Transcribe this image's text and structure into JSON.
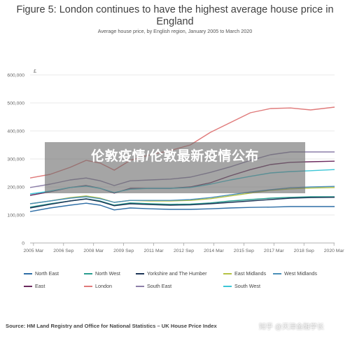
{
  "header": {
    "title": "Figure 5: London continues to have the highest average house price in England",
    "subtitle": "Average house price, by English region, January 2005 to March 2020"
  },
  "overlay_text": "伦敦疫情/伦敦最新疫情公布",
  "source_text": "Source: HM Land Registry and Office for National Statistics – UK House Price Index",
  "watermark_text": "知乎 @天津金融学长",
  "chart_data": {
    "type": "line",
    "ylabel": "£",
    "ylim": [
      0,
      600000
    ],
    "yticks": [
      "0",
      "100,000",
      "200,000",
      "300,000",
      "400,000",
      "500,000",
      "600,000"
    ],
    "xlim": [
      2005,
      2020.2
    ],
    "xticks": [
      {
        "label": "2005 Mar",
        "value": 2005.17
      },
      {
        "label": "2006 Sep",
        "value": 2006.67
      },
      {
        "label": "2008 Mar",
        "value": 2008.17
      },
      {
        "label": "2009 Sep",
        "value": 2009.67
      },
      {
        "label": "2011 Mar",
        "value": 2011.17
      },
      {
        "label": "2012 Sep",
        "value": 2012.67
      },
      {
        "label": "2014 Mar",
        "value": 2014.17
      },
      {
        "label": "2015 Sep",
        "value": 2015.67
      },
      {
        "label": "2017 Mar",
        "value": 2017.17
      },
      {
        "label": "2018 Sep",
        "value": 2018.67
      },
      {
        "label": "2020 Mar",
        "value": 2020.17
      }
    ],
    "grid": true,
    "legend_position": "bottom",
    "x": [
      2005.0,
      2006.0,
      2007.0,
      2007.8,
      2008.5,
      2009.2,
      2010.0,
      2011.0,
      2012.0,
      2013.0,
      2014.0,
      2015.0,
      2016.0,
      2017.0,
      2018.0,
      2019.0,
      2020.2
    ],
    "series": [
      {
        "name": "North East",
        "color": "#2e6ea6",
        "values": [
          112000,
          125000,
          135000,
          142000,
          135000,
          118000,
          125000,
          122000,
          120000,
          120000,
          122000,
          125000,
          127000,
          128000,
          130000,
          130000,
          130000
        ]
      },
      {
        "name": "North West",
        "color": "#2a9d8f",
        "values": [
          128000,
          140000,
          150000,
          158000,
          150000,
          135000,
          143000,
          140000,
          138000,
          139000,
          143000,
          150000,
          155000,
          160000,
          163000,
          165000,
          165000
        ]
      },
      {
        "name": "Yorkshire and The Humber",
        "color": "#1d3557",
        "values": [
          125000,
          138000,
          150000,
          157000,
          148000,
          133000,
          140000,
          137000,
          135000,
          136000,
          140000,
          145000,
          150000,
          155000,
          160000,
          162000,
          163000
        ]
      },
      {
        "name": "East Midlands",
        "color": "#b5c244",
        "values": [
          140000,
          150000,
          162000,
          168000,
          160000,
          145000,
          152000,
          150000,
          150000,
          152000,
          158000,
          168000,
          178000,
          188000,
          193000,
          196000,
          198000
        ]
      },
      {
        "name": "West Midlands",
        "color": "#4a8fb8",
        "values": [
          140000,
          150000,
          160000,
          165000,
          158000,
          145000,
          152000,
          152000,
          152000,
          155000,
          162000,
          172000,
          182000,
          190000,
          197000,
          200000,
          202000
        ]
      },
      {
        "name": "East",
        "color": "#6b2a5e",
        "values": [
          170000,
          183000,
          198000,
          205000,
          195000,
          178000,
          195000,
          195000,
          195000,
          200000,
          215000,
          240000,
          262000,
          280000,
          288000,
          290000,
          292000
        ]
      },
      {
        "name": "London",
        "color": "#e07a7a",
        "values": [
          232000,
          245000,
          270000,
          295000,
          285000,
          260000,
          295000,
          315000,
          330000,
          350000,
          395000,
          430000,
          465000,
          480000,
          482000,
          475000,
          485000
        ]
      },
      {
        "name": "South East",
        "color": "#8c7ea8",
        "values": [
          198000,
          210000,
          225000,
          232000,
          222000,
          205000,
          222000,
          225000,
          228000,
          235000,
          252000,
          272000,
          295000,
          315000,
          325000,
          325000,
          325000
        ]
      },
      {
        "name": "South West",
        "color": "#3cc6d6",
        "values": [
          175000,
          185000,
          198000,
          203000,
          195000,
          180000,
          192000,
          195000,
          195000,
          198000,
          210000,
          225000,
          238000,
          250000,
          255000,
          258000,
          262000
        ]
      }
    ]
  }
}
